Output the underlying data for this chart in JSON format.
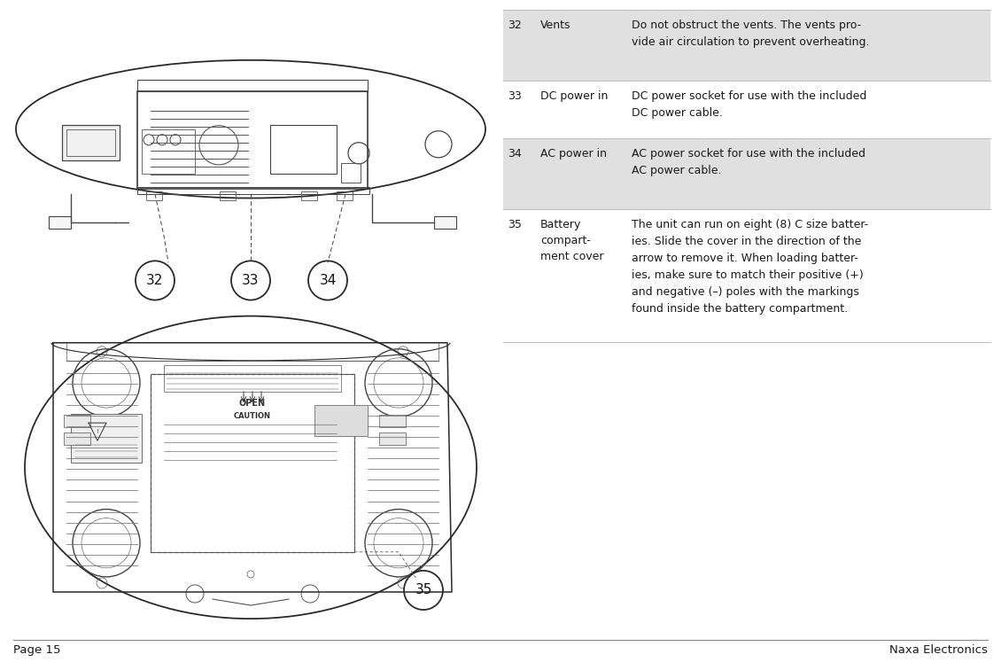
{
  "page_bg": "#ffffff",
  "footer_left": "Page 15",
  "footer_right": "Naxa Electronics",
  "footer_fontsize": 9.5,
  "text_color": "#1a1a1a",
  "font_family": "DejaVu Sans",
  "row_font_size": 9.0,
  "shaded_color": "#e0e0e0",
  "rows": [
    {
      "num": "32",
      "name": "Vents",
      "desc": "Do not obstruct the vents. The vents pro-\nvide air circulation to prevent overheating.",
      "shaded": true,
      "lines": 2
    },
    {
      "num": "33",
      "name": "DC power in",
      "desc": "DC power socket for use with the included\nDC power cable.",
      "shaded": false,
      "lines": 2
    },
    {
      "num": "34",
      "name": "AC power in",
      "desc": "AC power socket for use with the included\nAC power cable.",
      "shaded": true,
      "lines": 2
    },
    {
      "num": "35",
      "name": "Battery\ncompart-\nment cover",
      "desc": "The unit can run on eight (8) C size batter-\nies. Slide the cover in the direction of the\narrow to remove it. When loading batter-\nies, make sure to match their positive (+)\nand negative (–) poles with the markings\nfound inside the battery compartment.",
      "shaded": false,
      "lines": 6
    }
  ]
}
